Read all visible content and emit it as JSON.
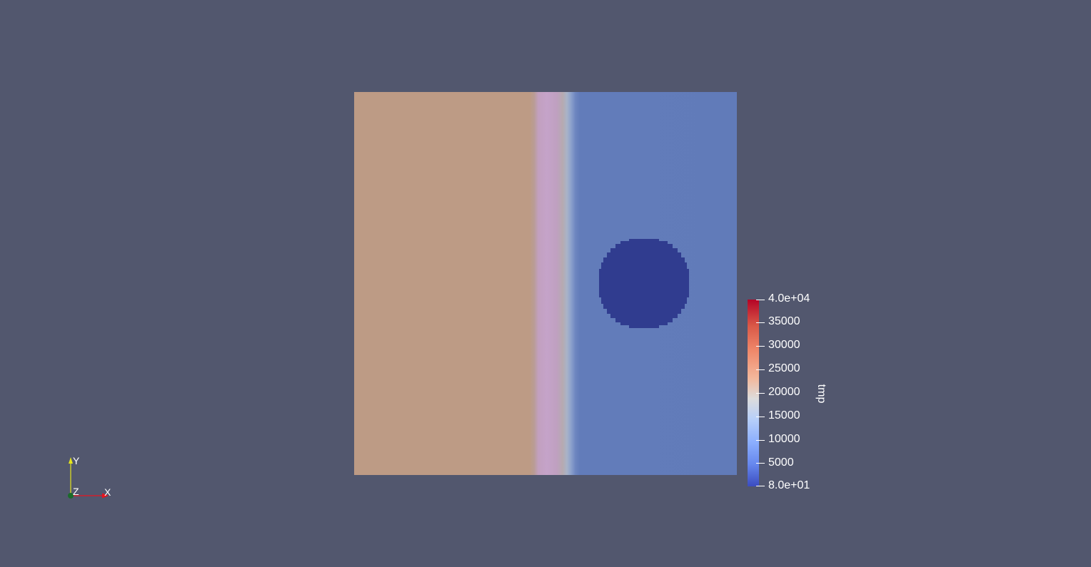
{
  "viewport": {
    "background_color": "#52576e"
  },
  "field": {
    "left_region_color": "#bd9b85",
    "transition_band_color": "#c5a3c9",
    "right_region_color": "#617bb9",
    "inclusion_color": "#303c8f"
  },
  "colorbar": {
    "title": "tmp",
    "colormap": "Cool to Warm",
    "min": 80,
    "max": 40000,
    "labels": [
      "4.0e+04",
      "35000",
      "30000",
      "25000",
      "20000",
      "15000",
      "10000",
      "5000",
      "8.0e+01"
    ]
  },
  "axes": {
    "x_label": "X",
    "y_label": "Y",
    "z_label": "Z",
    "x_color": "#e8141e",
    "y_color": "#e6e61a",
    "z_color": "#1a6b2a"
  }
}
